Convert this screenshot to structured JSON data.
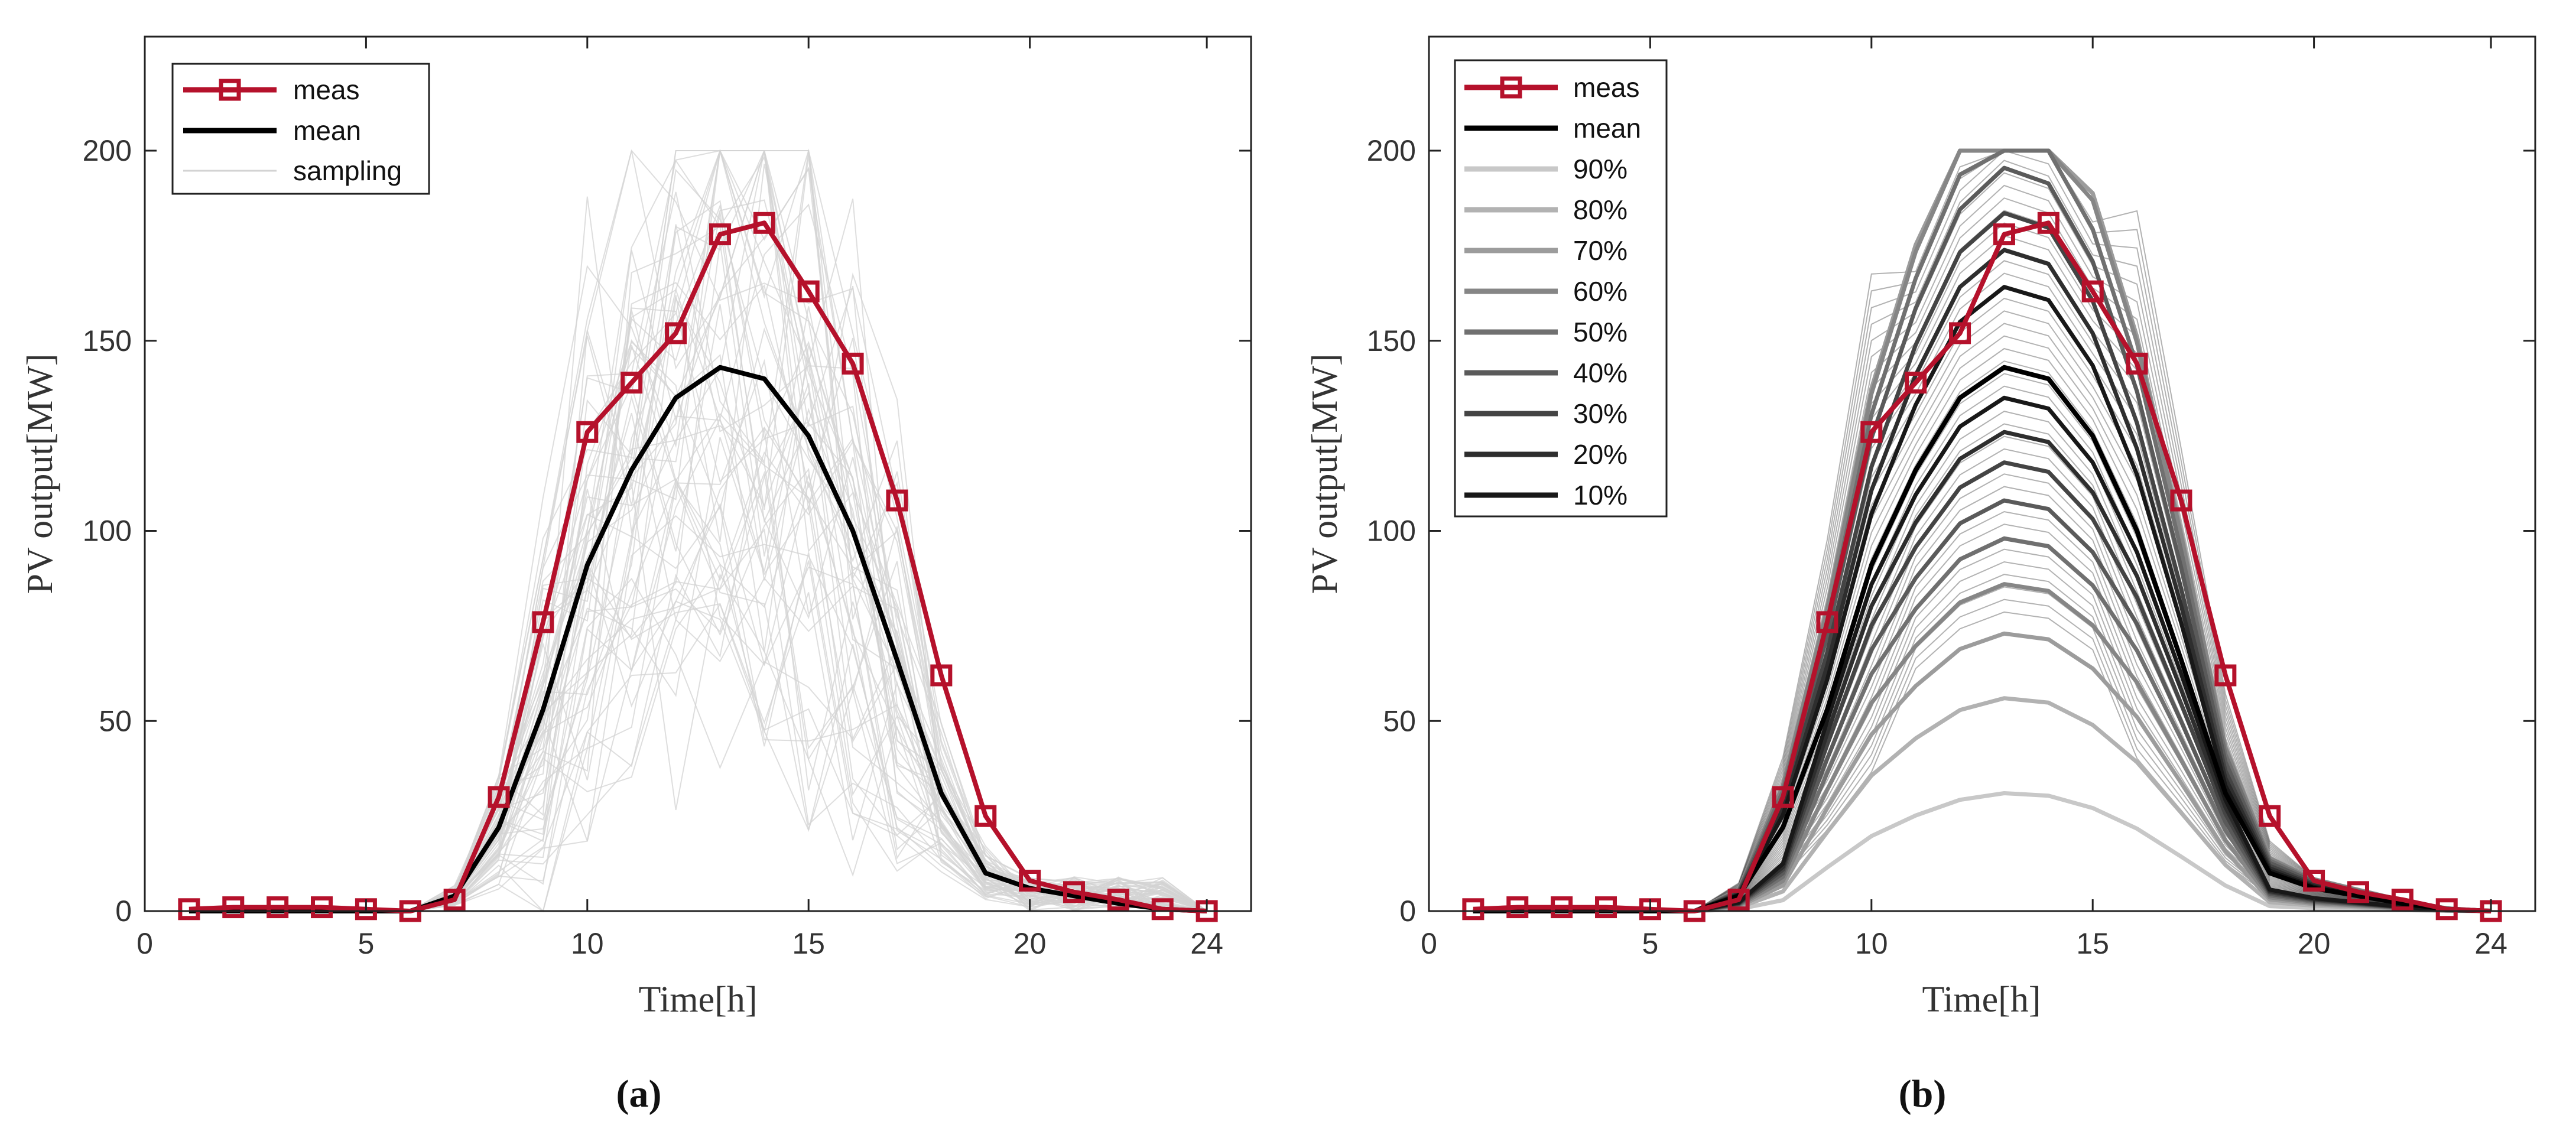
{
  "figure": {
    "panel_a_caption": "(a)",
    "panel_b_caption": "(b)"
  },
  "colors": {
    "meas": "#b5112b",
    "mean": "#000000",
    "sampling": "#d3d3d3",
    "axis": "#222222"
  },
  "chart_data": [
    {
      "id": "a",
      "type": "line",
      "title": "",
      "xlabel": "Time[h]",
      "ylabel": "PV output[MW]",
      "xlim": [
        0,
        25
      ],
      "ylim": [
        0,
        230
      ],
      "xticks": [
        0,
        5,
        10,
        15,
        20,
        24
      ],
      "yticks": [
        0,
        50,
        100,
        150,
        200
      ],
      "grid": false,
      "legend_position": "top-left",
      "legend": [
        "meas",
        "mean",
        "sampling"
      ],
      "x": [
        1,
        2,
        3,
        4,
        5,
        6,
        7,
        8,
        9,
        10,
        11,
        12,
        13,
        14,
        15,
        16,
        17,
        18,
        19,
        20,
        21,
        22,
        23,
        24
      ],
      "series": [
        {
          "name": "meas",
          "style": "line-square-marker",
          "values": [
            0.5,
            1,
            1,
            1,
            0.5,
            0,
            3,
            30,
            76,
            126,
            139,
            152,
            178,
            181,
            163,
            144,
            108,
            62,
            25,
            8,
            5,
            3,
            0.5,
            0
          ]
        },
        {
          "name": "mean",
          "style": "line",
          "values": [
            0,
            0,
            0,
            0,
            0,
            0,
            4,
            22,
            53,
            91,
            116,
            135,
            143,
            140,
            125,
            100,
            66,
            31,
            10,
            6,
            4,
            2,
            0.5,
            0
          ]
        },
        {
          "name": "sampling",
          "style": "thin-light-lines",
          "count": 60,
          "cap": 200,
          "note": "Monte Carlo sample curves, clipped at 200 MW"
        }
      ]
    },
    {
      "id": "b",
      "type": "line",
      "title": "",
      "xlabel": "Time[h]",
      "ylabel": "PV output[MW]",
      "xlim": [
        0,
        25
      ],
      "ylim": [
        0,
        230
      ],
      "xticks": [
        0,
        5,
        10,
        15,
        20,
        24
      ],
      "yticks": [
        0,
        50,
        100,
        150,
        200
      ],
      "grid": false,
      "legend_position": "top-left",
      "legend": [
        "meas",
        "mean",
        "90%",
        "80%",
        "70%",
        "60%",
        "50%",
        "40%",
        "30%",
        "20%",
        "10%"
      ],
      "x": [
        1,
        2,
        3,
        4,
        5,
        6,
        7,
        8,
        9,
        10,
        11,
        12,
        13,
        14,
        15,
        16,
        17,
        18,
        19,
        20,
        21,
        22,
        23,
        24
      ],
      "series": [
        {
          "name": "meas",
          "style": "line-square-marker",
          "values": [
            0.5,
            1,
            1,
            1,
            0.5,
            0,
            3,
            30,
            76,
            126,
            139,
            152,
            178,
            181,
            163,
            144,
            108,
            62,
            25,
            8,
            5,
            3,
            0.5,
            0
          ]
        },
        {
          "name": "mean",
          "style": "line",
          "values": [
            0,
            0,
            0,
            0,
            0,
            0,
            4,
            22,
            53,
            91,
            116,
            135,
            143,
            140,
            125,
            100,
            66,
            31,
            10,
            6,
            4,
            2,
            0.5,
            0
          ]
        }
      ],
      "quantile_bands": [
        {
          "level": "90%",
          "upper_peak": 200,
          "lower_peak": 31,
          "gray": "#c8c8c8"
        },
        {
          "level": "80%",
          "upper_peak": 200,
          "lower_peak": 56,
          "gray": "#b2b2b2"
        },
        {
          "level": "70%",
          "upper_peak": 200,
          "lower_peak": 73,
          "gray": "#9c9c9c"
        },
        {
          "level": "60%",
          "upper_peak": 198,
          "lower_peak": 86,
          "gray": "#868686"
        },
        {
          "level": "50%",
          "upper_peak": 190,
          "lower_peak": 98,
          "gray": "#707070"
        },
        {
          "level": "40%",
          "upper_peak": 181,
          "lower_peak": 108,
          "gray": "#5a5a5a"
        },
        {
          "level": "30%",
          "upper_peak": 170,
          "lower_peak": 118,
          "gray": "#444444"
        },
        {
          "level": "20%",
          "upper_peak": 161,
          "lower_peak": 126,
          "gray": "#2e2e2e"
        },
        {
          "level": "10%",
          "upper_peak": 152,
          "lower_peak": 135,
          "gray": "#181818"
        }
      ]
    }
  ]
}
